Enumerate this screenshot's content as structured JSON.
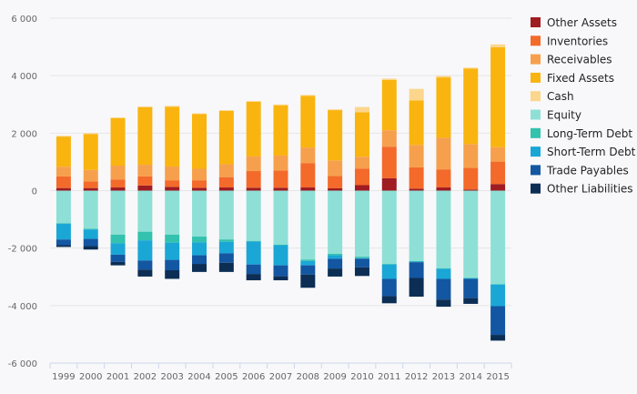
{
  "chart_data": {
    "type": "bar",
    "stacked": true,
    "title": "",
    "xlabel": "",
    "ylabel": "",
    "ylim": [
      -6000,
      6000
    ],
    "y_ticks": [
      -6000,
      -4000,
      -2000,
      0,
      2000,
      4000,
      6000
    ],
    "y_tick_labels": [
      "-6 000",
      "-4 000",
      "-2 000",
      "0",
      "2 000",
      "4 000",
      "6 000"
    ],
    "grid": true,
    "legend_position": "right",
    "categories": [
      "1999",
      "2000",
      "2001",
      "2002",
      "2003",
      "2004",
      "2005",
      "2006",
      "2007",
      "2008",
      "2009",
      "2010",
      "2011",
      "2012",
      "2013",
      "2014",
      "2015"
    ],
    "series": [
      {
        "name": "Other Assets",
        "color": "#9e1c22",
        "values": [
          90,
          90,
          110,
          180,
          130,
          100,
          110,
          100,
          100,
          110,
          80,
          190,
          430,
          70,
          110,
          40,
          230
        ]
      },
      {
        "name": "Inventories",
        "color": "#f36a2a",
        "values": [
          410,
          230,
          280,
          320,
          230,
          260,
          360,
          580,
          600,
          850,
          430,
          580,
          1100,
          740,
          630,
          750,
          780
        ]
      },
      {
        "name": "Receivables",
        "color": "#f6a04d",
        "values": [
          330,
          400,
          480,
          400,
          480,
          400,
          450,
          510,
          520,
          540,
          540,
          410,
          570,
          780,
          1100,
          830,
          500
        ]
      },
      {
        "name": "Fixed Assets",
        "color": "#f9b40f",
        "values": [
          1050,
          1250,
          1650,
          2000,
          2080,
          1900,
          1850,
          1900,
          1750,
          1800,
          1750,
          1550,
          1750,
          1550,
          2100,
          2630,
          3480
        ]
      },
      {
        "name": "Cash",
        "color": "#fbd68c",
        "values": [
          30,
          30,
          30,
          30,
          30,
          30,
          30,
          30,
          30,
          30,
          30,
          180,
          50,
          400,
          50,
          30,
          100
        ]
      },
      {
        "name": "Equity",
        "color": "#8ee0d6",
        "values": [
          -1130,
          -1330,
          -1530,
          -1430,
          -1530,
          -1600,
          -1700,
          -1750,
          -1880,
          -2400,
          -2200,
          -2300,
          -2550,
          -2450,
          -2700,
          -3030,
          -3250
        ]
      },
      {
        "name": "Long-Term Debt",
        "color": "#32c2ad",
        "values": [
          -20,
          -20,
          -300,
          -300,
          -280,
          -200,
          -80,
          -20,
          -20,
          -50,
          -50,
          -50,
          -20,
          -20,
          -20,
          -20,
          -20
        ]
      },
      {
        "name": "Short-Term Debt",
        "color": "#1aa7d6",
        "values": [
          -550,
          -330,
          -400,
          -700,
          -600,
          -450,
          -400,
          -800,
          -700,
          -150,
          -120,
          -20,
          -500,
          -20,
          -350,
          -20,
          -750
        ]
      },
      {
        "name": "Trade Payables",
        "color": "#1356a2",
        "values": [
          -200,
          -250,
          -250,
          -320,
          -360,
          -300,
          -330,
          -330,
          -380,
          -320,
          -340,
          -300,
          -600,
          -550,
          -720,
          -670,
          -1000
        ]
      },
      {
        "name": "Other Liabilities",
        "color": "#0c2e55",
        "values": [
          -60,
          -120,
          -120,
          -240,
          -300,
          -280,
          -320,
          -220,
          -140,
          -460,
          -280,
          -300,
          -250,
          -650,
          -250,
          -200,
          -200
        ]
      }
    ]
  }
}
